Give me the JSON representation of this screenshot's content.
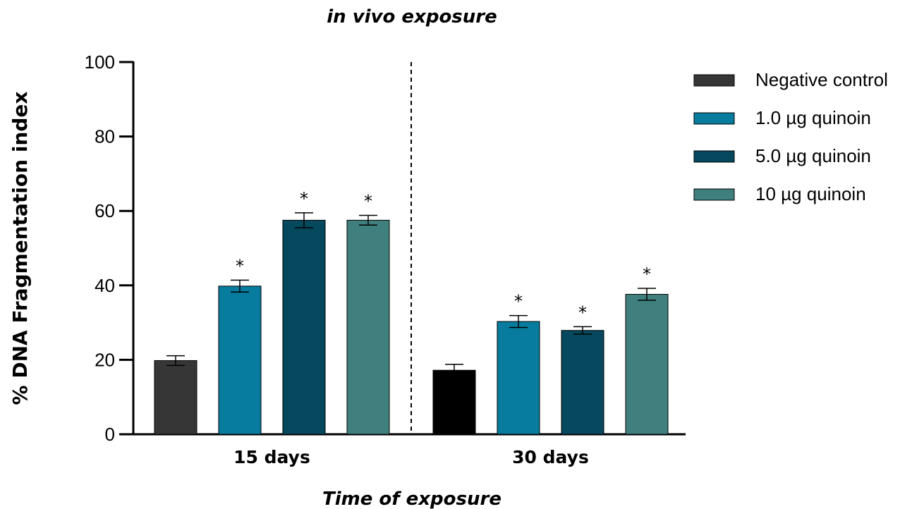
{
  "chart_data": {
    "type": "bar",
    "title": "in vivo exposure",
    "xlabel": "Time of exposure",
    "ylabel": "% DNA Fragmentation index",
    "ylim": [
      0,
      100
    ],
    "yticks": [
      "0",
      "20",
      "40",
      "60",
      "80",
      "100"
    ],
    "categories": [
      "15 days",
      "30 days"
    ],
    "separator": "dashed vertical line between groups",
    "legend_position": "right",
    "grid": false,
    "series": [
      {
        "name": "Negative control",
        "color": "#363636",
        "values": [
          19.8,
          17.2
        ],
        "errors": [
          1.3,
          1.6
        ],
        "significance": [
          "",
          ""
        ]
      },
      {
        "name": "1.0 µg quinoin",
        "color": "#077c9e",
        "values": [
          39.8,
          30.3
        ],
        "errors": [
          1.6,
          1.6
        ],
        "significance": [
          "*",
          "*"
        ]
      },
      {
        "name": "5.0 µg quinoin",
        "color": "#06495e",
        "values": [
          57.5,
          27.9
        ],
        "errors": [
          2.0,
          1.0
        ],
        "significance": [
          "*",
          "*"
        ]
      },
      {
        "name": "10 µg quinoin",
        "color": "#3f7f7d",
        "values": [
          57.5,
          37.6
        ],
        "errors": [
          1.3,
          1.6
        ],
        "significance": [
          "*",
          "*"
        ]
      }
    ],
    "bar_color_overrides": [
      {
        "series": 0,
        "category": 1,
        "color": "#000000"
      }
    ]
  }
}
